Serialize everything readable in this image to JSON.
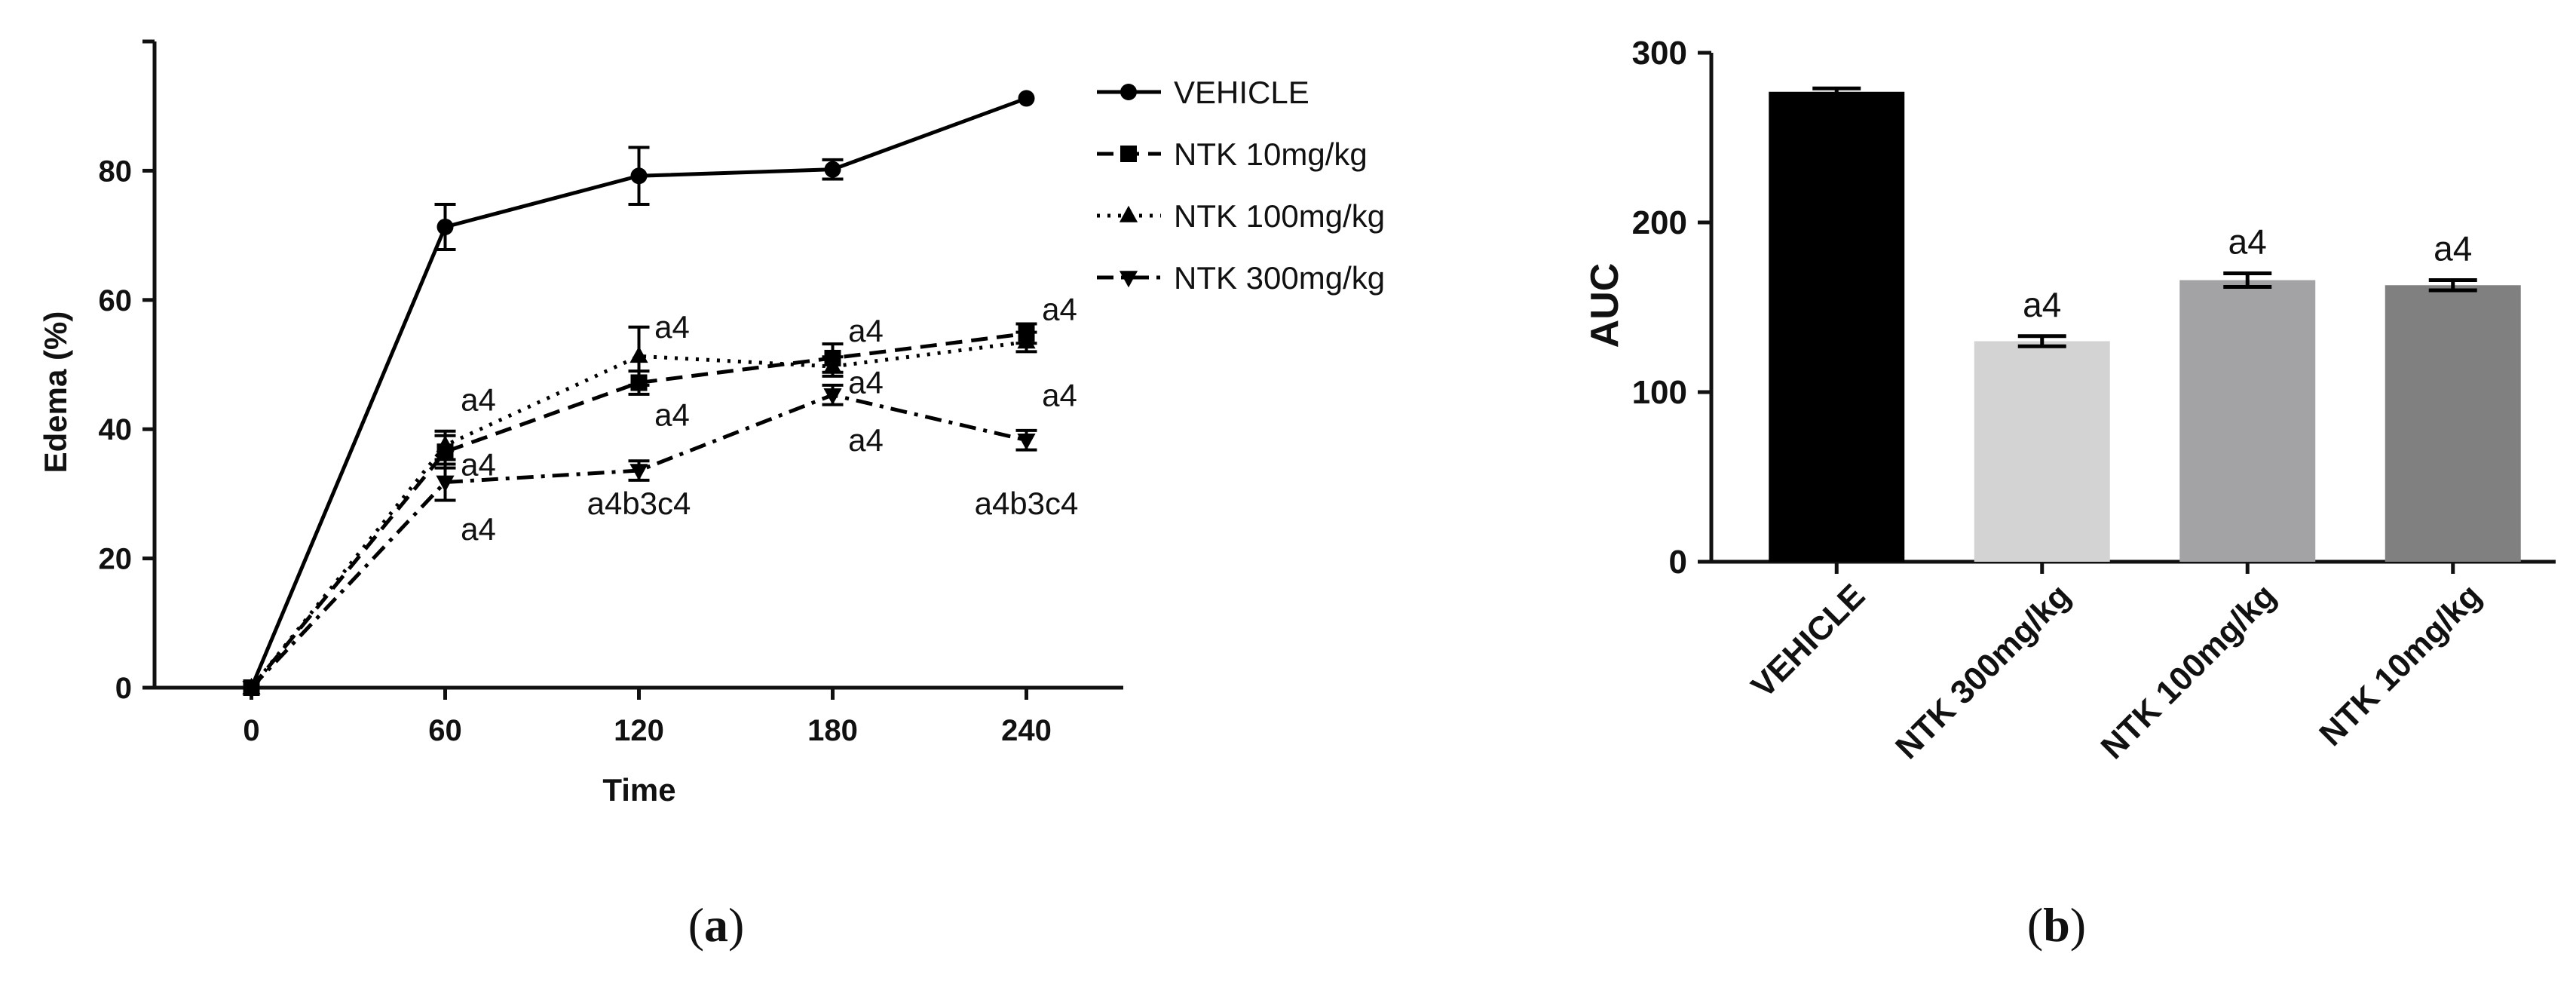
{
  "panels": [
    {
      "label": "a"
    },
    {
      "label": "b"
    }
  ],
  "chart_data": [
    {
      "type": "line",
      "xlabel": "Time",
      "ylabel": "Edema (%)",
      "x": [
        0,
        60,
        120,
        180,
        240
      ],
      "xlim": [
        -30,
        270
      ],
      "ylim": [
        0,
        100
      ],
      "y_ticks": [
        0,
        20,
        40,
        60,
        80
      ],
      "legend_position": "right",
      "series": [
        {
          "name": "VEHICLE",
          "style": "solid",
          "marker": "circle",
          "values": [
            0,
            71.3,
            79.2,
            80.2,
            91.2
          ],
          "errors": [
            0,
            3.5,
            4.4,
            1.5,
            0
          ]
        },
        {
          "name": "NTK 10mg/kg",
          "style": "dashed",
          "marker": "square",
          "values": [
            0,
            36.5,
            47.2,
            51.0,
            54.8
          ],
          "errors": [
            0,
            2.5,
            1.8,
            2.2,
            1.5
          ]
        },
        {
          "name": "NTK 100mg/kg",
          "style": "dotted",
          "marker": "triangle-up",
          "values": [
            0,
            37.5,
            51.3,
            49.7,
            53.5
          ],
          "errors": [
            0,
            2.2,
            4.5,
            1.5,
            1.5
          ]
        },
        {
          "name": "NTK 300mg/kg",
          "style": "dashdot",
          "marker": "triangle-down",
          "values": [
            0,
            31.8,
            33.6,
            45.3,
            38.3
          ],
          "errors": [
            0,
            2.8,
            1.5,
            1.5,
            1.5
          ]
        }
      ],
      "annotations": [
        {
          "text": "a4",
          "x": 60,
          "y": 44.5
        },
        {
          "text": "a4",
          "x": 60,
          "y": 34.5
        },
        {
          "text": "a4",
          "x": 60,
          "y": 24.5
        },
        {
          "text": "a4",
          "x": 120,
          "y": 55.8
        },
        {
          "text": "a4",
          "x": 120,
          "y": 42.2
        },
        {
          "text": "a4b3c4",
          "x": 120,
          "y": 28.5
        },
        {
          "text": "a4",
          "x": 180,
          "y": 55.2
        },
        {
          "text": "a4",
          "x": 180,
          "y": 47.2
        },
        {
          "text": "a4",
          "x": 180,
          "y": 38.3
        },
        {
          "text": "a4",
          "x": 240,
          "y": 58.5
        },
        {
          "text": "a4",
          "x": 240,
          "y": 45.2
        },
        {
          "text": "a4b3c4",
          "x": 240,
          "y": 28.5
        }
      ]
    },
    {
      "type": "bar",
      "ylabel": "AUC",
      "categories": [
        "VEHICLE",
        "NTK 300mg/kg",
        "NTK 100mg/kg",
        "NTK 10mg/kg"
      ],
      "values": [
        277,
        130,
        166,
        163
      ],
      "errors": [
        2,
        3,
        4,
        3
      ],
      "colors": [
        "#000000",
        "#d3d3d3",
        "#a3a3a5",
        "#808080"
      ],
      "bar_annotations": [
        "",
        "a4",
        "a4",
        "a4"
      ],
      "ylim": [
        0,
        300
      ],
      "y_ticks": [
        0,
        100,
        200,
        300
      ]
    }
  ]
}
